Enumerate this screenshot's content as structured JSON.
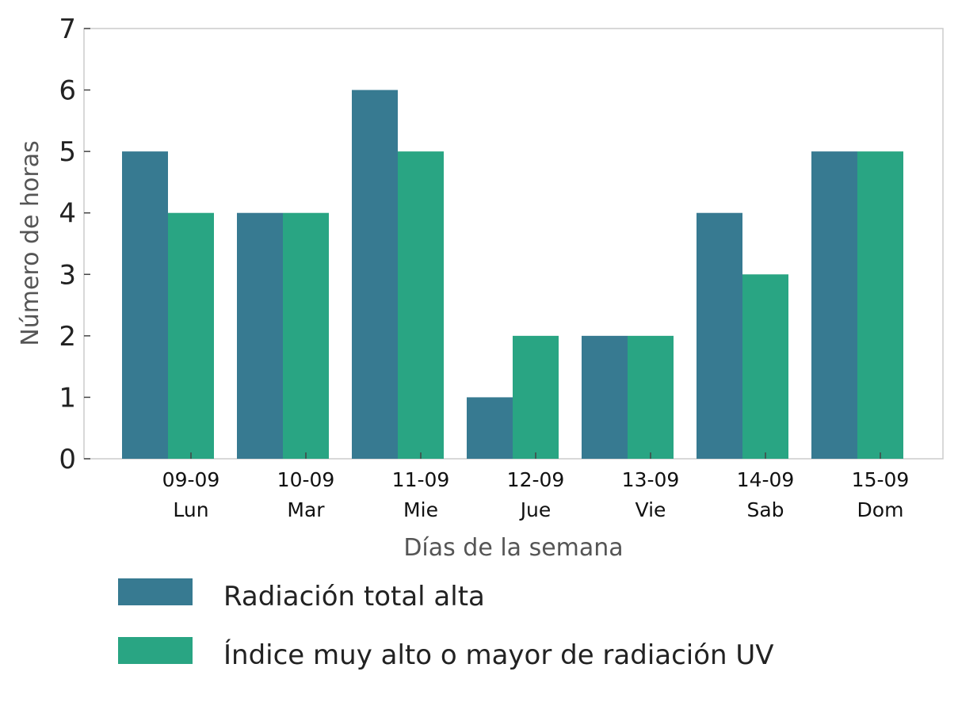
{
  "chart_data": {
    "type": "bar",
    "categories": [
      "09-09",
      "10-09",
      "11-09",
      "12-09",
      "13-09",
      "14-09",
      "15-09"
    ],
    "category_sublabels": [
      "Lun",
      "Mar",
      "Mie",
      "Jue",
      "Vie",
      "Sab",
      "Dom"
    ],
    "series": [
      {
        "name": "Radiación total alta",
        "values": [
          5,
          4,
          6,
          1,
          2,
          4,
          5
        ],
        "color": "#377a91"
      },
      {
        "name": "Índice muy alto o mayor de radiación UV",
        "values": [
          4,
          4,
          5,
          2,
          2,
          3,
          5
        ],
        "color": "#29a583"
      }
    ],
    "xlabel": "Días de la semana",
    "ylabel": "Número de horas",
    "ylim": [
      0,
      7
    ],
    "yticks": [
      "0",
      "1",
      "2",
      "3",
      "4",
      "5",
      "6",
      "7"
    ],
    "grid": false,
    "legend": "bottom-left"
  }
}
